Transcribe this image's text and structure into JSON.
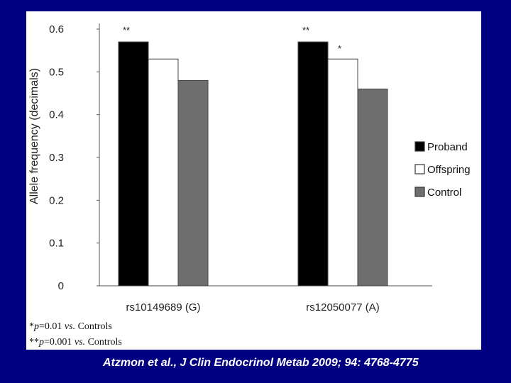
{
  "chart_data": {
    "type": "bar",
    "ylabel": "Allele frequency (decimals)",
    "ylim": [
      0,
      0.6
    ],
    "yticks": [
      "0",
      "0.1",
      "0.2",
      "0.3",
      "0.4",
      "0.5",
      "0.6"
    ],
    "categories": [
      "rs10149689 (G)",
      "rs12050077 (A)"
    ],
    "series": [
      {
        "name": "Proband",
        "color": "#000000",
        "values": [
          0.57,
          0.57
        ]
      },
      {
        "name": "Offspring",
        "color": "#ffffff",
        "values": [
          0.53,
          0.53
        ]
      },
      {
        "name": "Control",
        "color": "#6e6e6e",
        "values": [
          0.48,
          0.46
        ]
      }
    ],
    "annotations": [
      {
        "category": 0,
        "series": 0,
        "text": "**"
      },
      {
        "category": 1,
        "series": 0,
        "text": "**"
      },
      {
        "category": 1,
        "series": 1,
        "text": "*"
      }
    ],
    "legend_position": "right",
    "grid": false
  },
  "footnotes": {
    "line1": {
      "mark": "*",
      "p": "p",
      "rest": "=0.01 ",
      "vs": "vs.",
      "tail": " Controls"
    },
    "line2": {
      "mark": "**",
      "p": "p",
      "rest": "=0.001 ",
      "vs": "vs.",
      "tail": " Controls"
    }
  },
  "citation": "Atzmon et al., J Clin Endocrinol Metab 2009; 94: 4768-4775"
}
